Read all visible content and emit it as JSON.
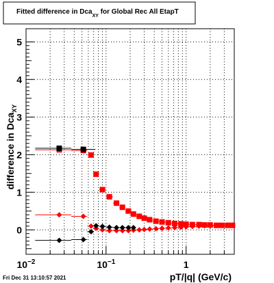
{
  "footer": {
    "timestamp": "Fri Dec 31 13:10:57 2021"
  },
  "chart_data": {
    "type": "scatter",
    "title_main": "Fitted difference in Dca",
    "title_sub": "XY",
    "title_rest": " for Global Rec All EtapT",
    "xlabel": "pT/|q| (GeV/c)",
    "ylabel_main": "difference in Dca",
    "ylabel_sub": "XY",
    "xscale": "log",
    "xlim": [
      0.01,
      4.0
    ],
    "ylim": [
      -0.65,
      5.35
    ],
    "grid": true,
    "xticks": [
      {
        "value": 0.01,
        "base": "10",
        "exp": "−2"
      },
      {
        "value": 0.1,
        "base": "10",
        "exp": "−1"
      },
      {
        "value": 1,
        "base": "1",
        "exp": ""
      }
    ],
    "yticks": [
      0,
      1,
      2,
      3,
      4,
      5
    ],
    "colors": {
      "red": "#ff0000",
      "black": "#000000"
    },
    "series": [
      {
        "color": "#ff0000",
        "marker": "square",
        "x": [
          0.026,
          0.052,
          0.065,
          0.075,
          0.09,
          0.11,
          0.135,
          0.16,
          0.19,
          0.22,
          0.26,
          0.3,
          0.35,
          0.42,
          0.5,
          0.6,
          0.72,
          0.86,
          1.0,
          1.2,
          1.45,
          1.7,
          2.0,
          2.4,
          2.8,
          3.3,
          3.8
        ],
        "y": [
          2.13,
          2.11,
          1.99,
          1.48,
          1.07,
          0.88,
          0.71,
          0.6,
          0.5,
          0.42,
          0.36,
          0.31,
          0.27,
          0.23,
          0.21,
          0.19,
          0.17,
          0.16,
          0.15,
          0.14,
          0.14,
          0.13,
          0.13,
          0.12,
          0.12,
          0.12,
          0.12
        ]
      },
      {
        "color": "#ff0000",
        "marker": "diamond",
        "x": [
          0.026,
          0.052,
          0.065,
          0.075,
          0.09,
          0.11,
          0.135,
          0.16,
          0.19,
          0.22,
          0.26,
          0.3,
          0.35,
          0.42,
          0.5,
          0.6,
          0.72,
          0.86,
          1.0,
          1.2,
          1.45,
          1.7,
          2.0,
          2.4,
          2.8,
          3.3,
          3.8
        ],
        "y": [
          0.4,
          0.36,
          0.1,
          0.04,
          0.0,
          -0.02,
          -0.02,
          -0.02,
          -0.02,
          -0.01,
          0.0,
          0.01,
          0.02,
          0.03,
          0.04,
          0.05,
          0.06,
          0.07,
          0.08,
          0.09,
          0.1,
          0.11,
          0.11,
          0.12,
          0.12,
          0.13,
          0.13
        ]
      },
      {
        "color": "#000000",
        "marker": "square",
        "x": [
          0.026,
          0.052
        ],
        "y": [
          2.17,
          2.14
        ]
      },
      {
        "color": "#000000",
        "marker": "diamond",
        "x": [
          0.026,
          0.052,
          0.065,
          0.075,
          0.09,
          0.11,
          0.135,
          0.16,
          0.19,
          0.22
        ],
        "y": [
          -0.28,
          -0.26,
          -0.05,
          0.11,
          0.09,
          0.07,
          0.06,
          0.06,
          0.06,
          0.06
        ]
      }
    ]
  }
}
